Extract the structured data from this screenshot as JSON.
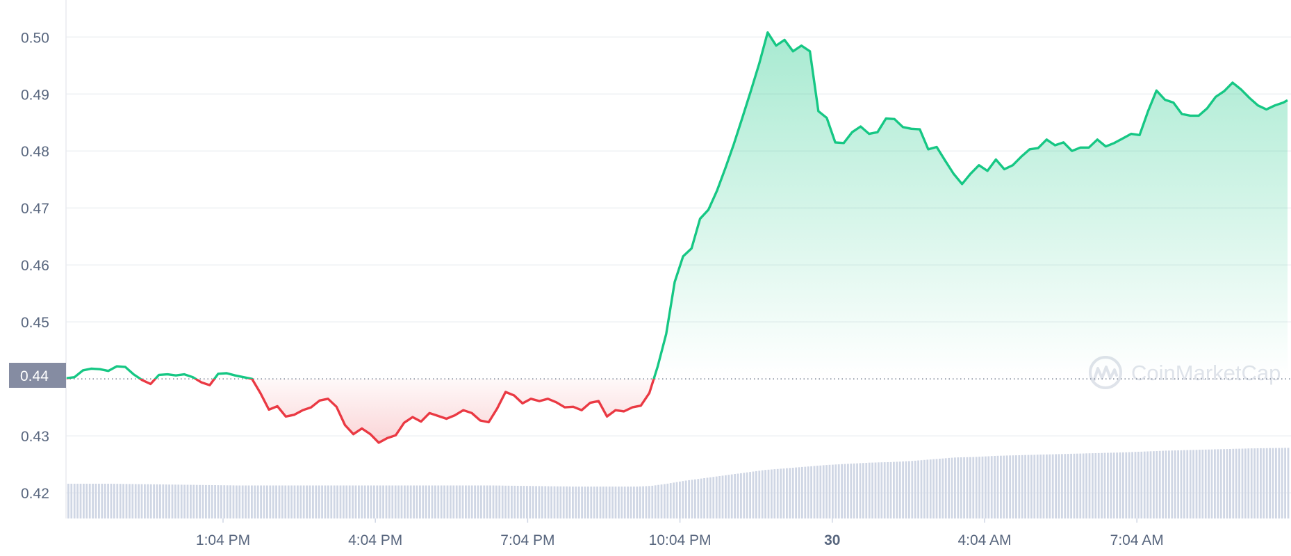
{
  "chart_data": {
    "type": "area",
    "baseline": 0.44,
    "baseline_label": "0.44",
    "ylim": [
      0.4155,
      0.5065
    ],
    "yticks": [
      {
        "value": 0.5,
        "label": "0.50"
      },
      {
        "value": 0.49,
        "label": "0.49"
      },
      {
        "value": 0.48,
        "label": "0.48"
      },
      {
        "value": 0.47,
        "label": "0.47"
      },
      {
        "value": 0.46,
        "label": "0.46"
      },
      {
        "value": 0.45,
        "label": "0.45"
      },
      {
        "value": 0.44,
        "label": ""
      },
      {
        "value": 0.43,
        "label": "0.43"
      },
      {
        "value": 0.42,
        "label": "0.42"
      }
    ],
    "xticks": [
      {
        "label": "1:04 PM",
        "bold": false
      },
      {
        "label": "4:04 PM",
        "bold": false
      },
      {
        "label": "7:04 PM",
        "bold": false
      },
      {
        "label": "10:04 PM",
        "bold": false
      },
      {
        "label": "30",
        "bold": true
      },
      {
        "label": "4:04 AM",
        "bold": false
      },
      {
        "label": "7:04 AM",
        "bold": false
      }
    ],
    "price_series": [
      [
        0.0,
        0.4401
      ],
      [
        0.4,
        0.4403
      ],
      [
        0.8,
        0.4415
      ],
      [
        1.2,
        0.4418
      ],
      [
        1.6,
        0.4417
      ],
      [
        2.0,
        0.4414
      ],
      [
        2.4,
        0.4422
      ],
      [
        2.8,
        0.4421
      ],
      [
        3.2,
        0.4408
      ],
      [
        3.6,
        0.4398
      ],
      [
        4.0,
        0.4391
      ],
      [
        4.4,
        0.4407
      ],
      [
        4.8,
        0.4408
      ],
      [
        5.2,
        0.4406
      ],
      [
        5.6,
        0.4408
      ],
      [
        6.0,
        0.4403
      ],
      [
        6.4,
        0.4394
      ],
      [
        6.8,
        0.4389
      ],
      [
        7.2,
        0.4409
      ],
      [
        7.6,
        0.441
      ],
      [
        8.0,
        0.4406
      ],
      [
        8.4,
        0.4403
      ],
      [
        8.8,
        0.44
      ],
      [
        9.2,
        0.4375
      ],
      [
        9.6,
        0.4346
      ],
      [
        10.0,
        0.4352
      ],
      [
        10.4,
        0.4334
      ],
      [
        10.8,
        0.4337
      ],
      [
        11.2,
        0.4345
      ],
      [
        11.6,
        0.435
      ],
      [
        12.0,
        0.4362
      ],
      [
        12.4,
        0.4365
      ],
      [
        12.8,
        0.4351
      ],
      [
        13.2,
        0.4319
      ],
      [
        13.6,
        0.4303
      ],
      [
        14.0,
        0.4313
      ],
      [
        14.4,
        0.4303
      ],
      [
        14.8,
        0.4288
      ],
      [
        15.2,
        0.4296
      ],
      [
        15.6,
        0.4301
      ],
      [
        16.0,
        0.4323
      ],
      [
        16.4,
        0.4333
      ],
      [
        16.8,
        0.4325
      ],
      [
        17.2,
        0.434
      ],
      [
        17.6,
        0.4335
      ],
      [
        18.0,
        0.433
      ],
      [
        18.4,
        0.4336
      ],
      [
        18.8,
        0.4345
      ],
      [
        19.2,
        0.434
      ],
      [
        19.6,
        0.4327
      ],
      [
        20.0,
        0.4324
      ],
      [
        20.4,
        0.4348
      ],
      [
        20.8,
        0.4377
      ],
      [
        21.2,
        0.4371
      ],
      [
        21.6,
        0.4357
      ],
      [
        22.0,
        0.4365
      ],
      [
        22.4,
        0.4361
      ],
      [
        22.8,
        0.4365
      ],
      [
        23.2,
        0.4359
      ],
      [
        23.6,
        0.435
      ],
      [
        24.0,
        0.4351
      ],
      [
        24.4,
        0.4345
      ],
      [
        24.8,
        0.4358
      ],
      [
        25.2,
        0.4361
      ],
      [
        25.6,
        0.4334
      ],
      [
        26.0,
        0.4345
      ],
      [
        26.4,
        0.4343
      ],
      [
        26.8,
        0.435
      ],
      [
        27.2,
        0.4353
      ],
      [
        27.6,
        0.4375
      ],
      [
        28.0,
        0.4422
      ],
      [
        28.4,
        0.4479
      ],
      [
        28.8,
        0.457
      ],
      [
        29.2,
        0.4615
      ],
      [
        29.6,
        0.4629
      ],
      [
        30.0,
        0.4681
      ],
      [
        30.4,
        0.4697
      ],
      [
        30.8,
        0.473
      ],
      [
        31.2,
        0.477
      ],
      [
        31.6,
        0.4812
      ],
      [
        32.0,
        0.4858
      ],
      [
        32.4,
        0.4905
      ],
      [
        32.8,
        0.4953
      ],
      [
        33.2,
        0.5008
      ],
      [
        33.6,
        0.4985
      ],
      [
        34.0,
        0.4995
      ],
      [
        34.4,
        0.4975
      ],
      [
        34.8,
        0.4985
      ],
      [
        35.2,
        0.4975
      ],
      [
        35.6,
        0.487
      ],
      [
        36.0,
        0.4858
      ],
      [
        36.4,
        0.4815
      ],
      [
        36.8,
        0.4814
      ],
      [
        37.2,
        0.4833
      ],
      [
        37.6,
        0.4843
      ],
      [
        38.0,
        0.483
      ],
      [
        38.4,
        0.4833
      ],
      [
        38.8,
        0.4857
      ],
      [
        39.2,
        0.4856
      ],
      [
        39.6,
        0.4842
      ],
      [
        40.0,
        0.4839
      ],
      [
        40.4,
        0.4838
      ],
      [
        40.8,
        0.4803
      ],
      [
        41.2,
        0.4807
      ],
      [
        41.6,
        0.4783
      ],
      [
        42.0,
        0.476
      ],
      [
        42.4,
        0.4742
      ],
      [
        42.8,
        0.476
      ],
      [
        43.2,
        0.4775
      ],
      [
        43.6,
        0.4765
      ],
      [
        44.0,
        0.4785
      ],
      [
        44.4,
        0.4768
      ],
      [
        44.8,
        0.4775
      ],
      [
        45.2,
        0.479
      ],
      [
        45.6,
        0.4803
      ],
      [
        46.0,
        0.4805
      ],
      [
        46.4,
        0.482
      ],
      [
        46.8,
        0.481
      ],
      [
        47.2,
        0.4815
      ],
      [
        47.6,
        0.48
      ],
      [
        48.0,
        0.4806
      ],
      [
        48.4,
        0.4806
      ],
      [
        48.8,
        0.482
      ],
      [
        49.2,
        0.4808
      ],
      [
        49.6,
        0.4814
      ],
      [
        50.0,
        0.4822
      ],
      [
        50.4,
        0.483
      ],
      [
        50.8,
        0.4828
      ],
      [
        51.2,
        0.487
      ],
      [
        51.6,
        0.4906
      ],
      [
        52.0,
        0.489
      ],
      [
        52.4,
        0.4885
      ],
      [
        52.8,
        0.4865
      ],
      [
        53.2,
        0.4862
      ],
      [
        53.6,
        0.4862
      ],
      [
        54.0,
        0.4875
      ],
      [
        54.4,
        0.4895
      ],
      [
        54.8,
        0.4905
      ],
      [
        55.2,
        0.492
      ],
      [
        55.6,
        0.4908
      ],
      [
        56.0,
        0.4893
      ],
      [
        56.4,
        0.488
      ],
      [
        56.8,
        0.4873
      ],
      [
        57.2,
        0.488
      ],
      [
        57.6,
        0.4885
      ],
      [
        57.8,
        0.4889
      ]
    ],
    "volume_series": [
      [
        0.0,
        0.4216
      ],
      [
        2.0,
        0.4216
      ],
      [
        4.0,
        0.4215
      ],
      [
        6.0,
        0.4214
      ],
      [
        8.0,
        0.4213
      ],
      [
        10.0,
        0.4213
      ],
      [
        12.0,
        0.4213
      ],
      [
        14.0,
        0.4213
      ],
      [
        16.0,
        0.4213
      ],
      [
        18.0,
        0.4213
      ],
      [
        20.0,
        0.4213
      ],
      [
        22.0,
        0.4212
      ],
      [
        24.0,
        0.4211
      ],
      [
        26.0,
        0.4211
      ],
      [
        27.0,
        0.4211
      ],
      [
        27.6,
        0.4212
      ],
      [
        28.4,
        0.4216
      ],
      [
        29.2,
        0.4221
      ],
      [
        30.0,
        0.4225
      ],
      [
        31.0,
        0.423
      ],
      [
        32.0,
        0.4235
      ],
      [
        33.0,
        0.424
      ],
      [
        34.0,
        0.4243
      ],
      [
        35.0,
        0.4246
      ],
      [
        36.0,
        0.4249
      ],
      [
        37.0,
        0.4251
      ],
      [
        38.0,
        0.4253
      ],
      [
        39.0,
        0.4254
      ],
      [
        40.0,
        0.4256
      ],
      [
        41.0,
        0.4259
      ],
      [
        42.0,
        0.4262
      ],
      [
        43.0,
        0.4263
      ],
      [
        44.0,
        0.4265
      ],
      [
        45.0,
        0.4266
      ],
      [
        46.0,
        0.4267
      ],
      [
        47.0,
        0.4268
      ],
      [
        48.0,
        0.4269
      ],
      [
        50.0,
        0.4271
      ],
      [
        52.0,
        0.4274
      ],
      [
        54.0,
        0.4276
      ],
      [
        56.0,
        0.4278
      ],
      [
        57.8,
        0.4279
      ]
    ],
    "watermark": "CoinMarketCap",
    "grid": true,
    "up_color": "#16c784",
    "down_color": "#ea3943",
    "volume_color": "#cfd6e4",
    "axis_text_color": "#58667e",
    "price_label_bg": "#858ca2"
  }
}
